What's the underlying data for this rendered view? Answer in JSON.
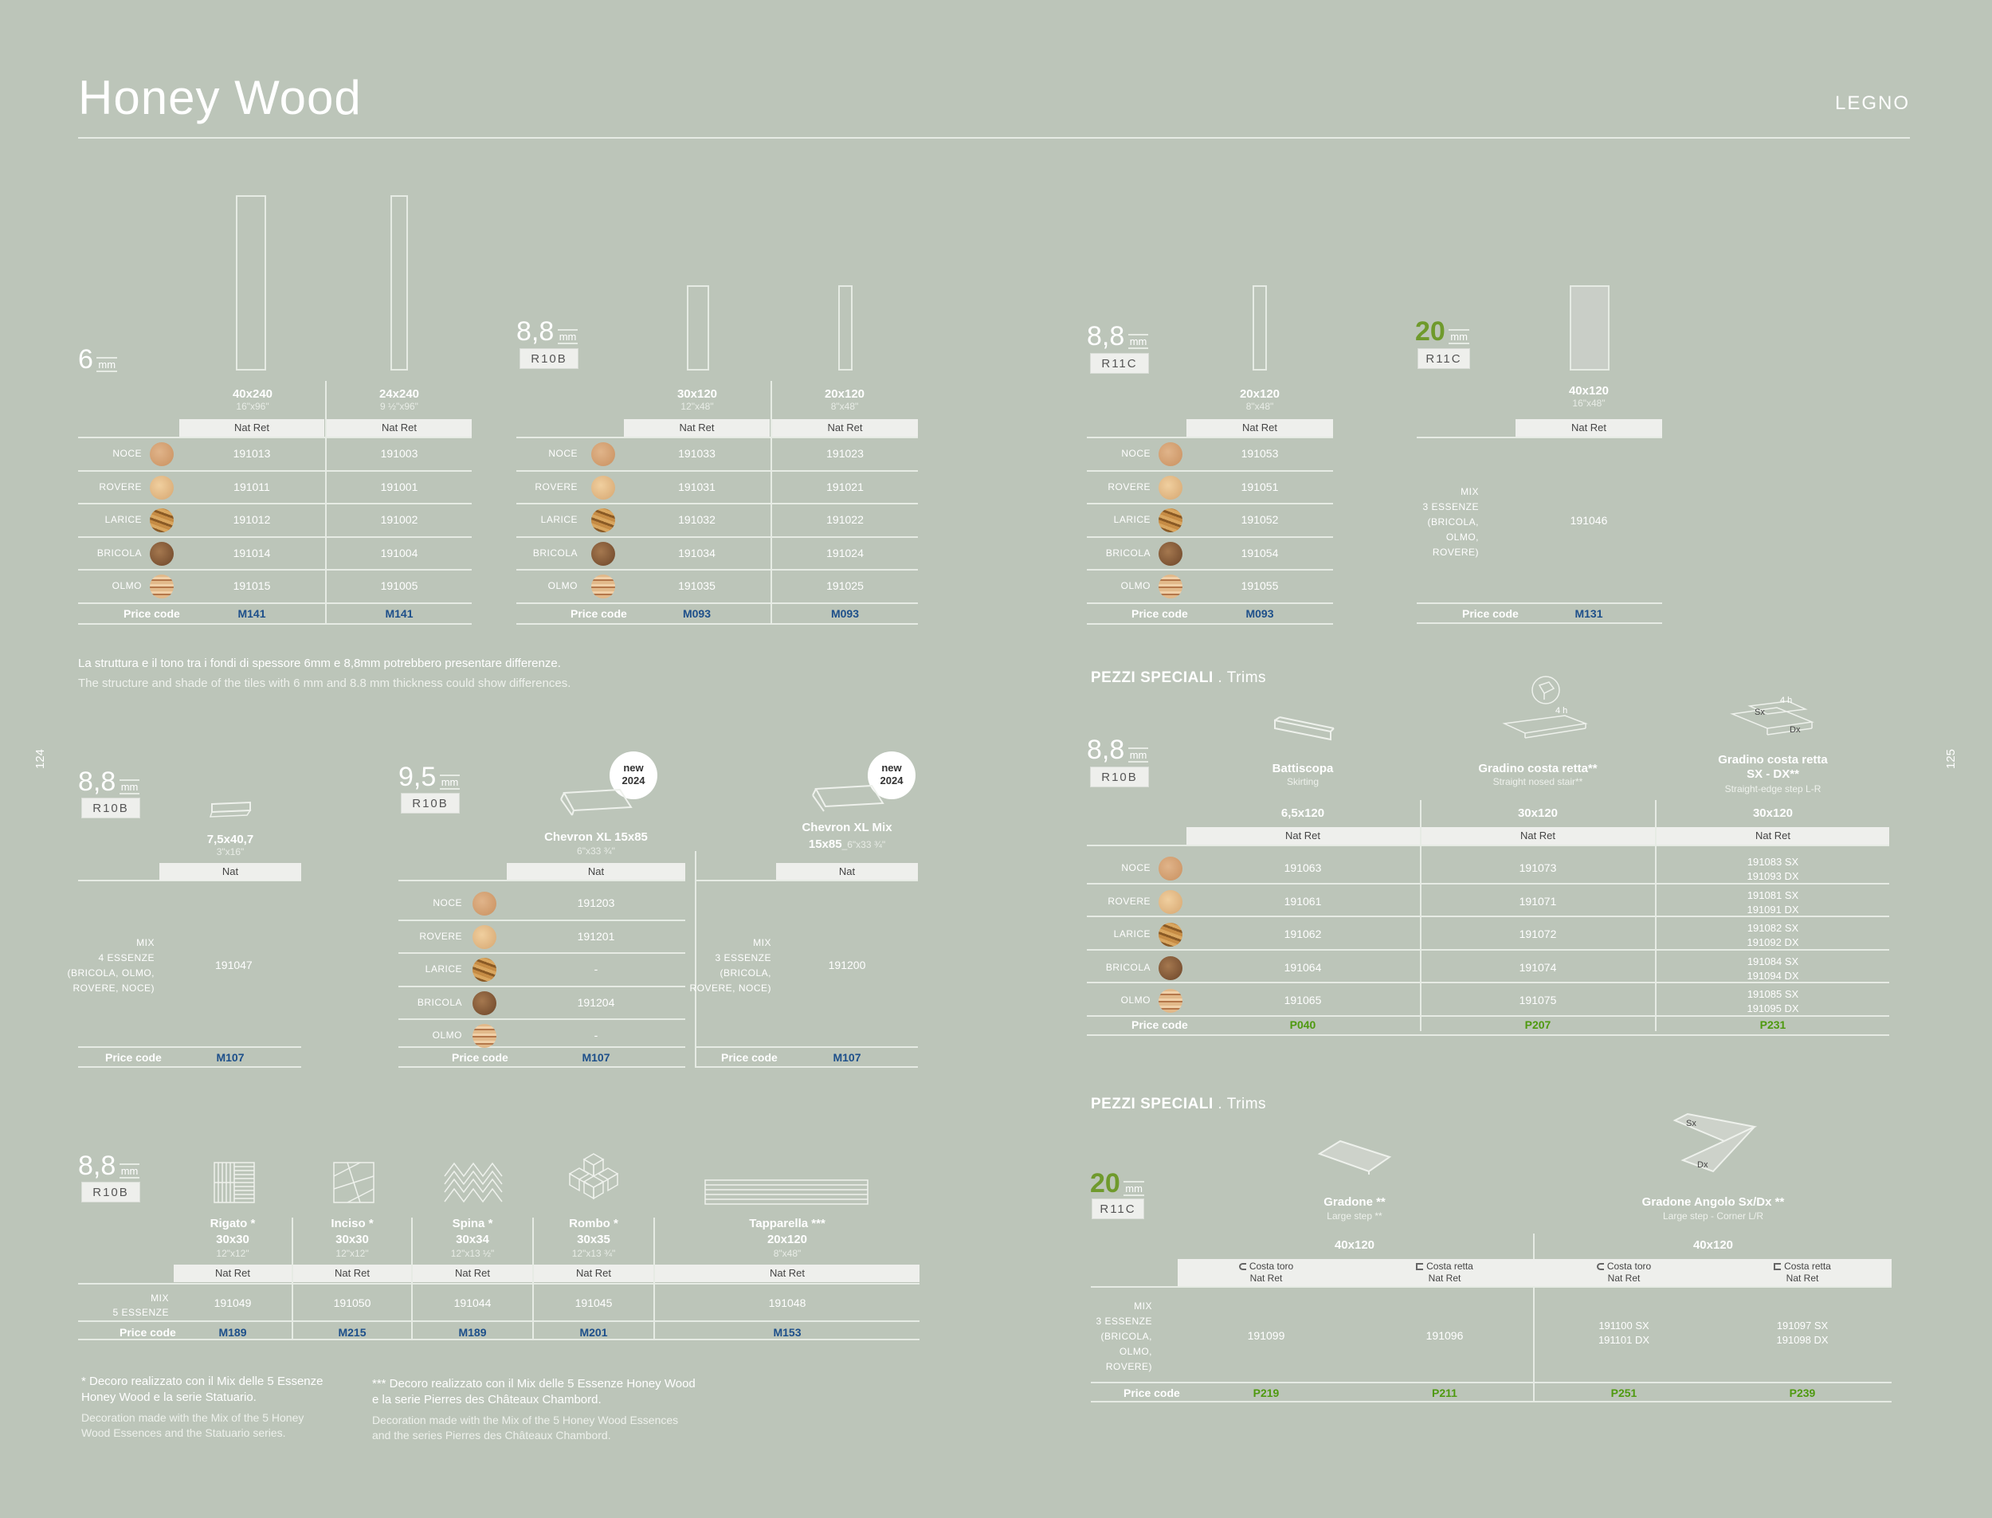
{
  "header": {
    "title": "Honey Wood",
    "category": "LEGNO",
    "page_left": "124",
    "page_right": "125"
  },
  "essences": [
    "NOCE",
    "ROVERE",
    "LARICE",
    "BRICOLA",
    "OLMO"
  ],
  "price_code_label": "Price code",
  "mm": "mm",
  "blockA": {
    "thickness": "6",
    "sizes": [
      {
        "cm": "40x240",
        "inch": "16\"x96\"",
        "finish": "Nat Ret",
        "codes": [
          "191013",
          "191011",
          "191012",
          "191014",
          "191015"
        ],
        "price": "M141"
      },
      {
        "cm": "24x240",
        "inch": "9 ½\"x96\"",
        "finish": "Nat Ret",
        "codes": [
          "191003",
          "191001",
          "191002",
          "191004",
          "191005"
        ],
        "price": "M141"
      }
    ]
  },
  "blockB": {
    "thickness": "8,8",
    "slip": "R10B",
    "sizes": [
      {
        "cm": "30x120",
        "inch": "12\"x48\"",
        "finish": "Nat Ret",
        "codes": [
          "191033",
          "191031",
          "191032",
          "191034",
          "191035"
        ],
        "price": "M093"
      },
      {
        "cm": "20x120",
        "inch": "8\"x48\"",
        "finish": "Nat Ret",
        "codes": [
          "191023",
          "191021",
          "191022",
          "191024",
          "191025"
        ],
        "price": "M093"
      }
    ]
  },
  "blockC": {
    "thickness": "8,8",
    "slip": "R11C",
    "size": {
      "cm": "20x120",
      "inch": "8\"x48\"",
      "finish": "Nat Ret",
      "codes": [
        "191053",
        "191051",
        "191052",
        "191054",
        "191055"
      ],
      "price": "M093"
    }
  },
  "blockD": {
    "thickness": "20",
    "slip": "R11C",
    "size": {
      "cm": "40x120",
      "inch": "16\"x48\"",
      "finish": "Nat Ret",
      "mix": [
        "MIX",
        "3 ESSENZE",
        "(BRICOLA,",
        "OLMO,",
        "ROVERE)"
      ],
      "code": "191046",
      "price": "M131"
    }
  },
  "notes": {
    "it": "La struttura e il tono tra i fondi di spessore 6mm e 8,8mm potrebbero presentare differenze.",
    "en": "The structure and shade of the tiles with 6 mm and 8.8 mm thickness could show differences."
  },
  "blockE": {
    "thickness": "8,8",
    "slip": "R10B",
    "size": {
      "cm": "7,5x40,7",
      "inch": "3\"x16\"",
      "finish": "Nat",
      "mix": [
        "MIX",
        "4 ESSENZE",
        "(BRICOLA, OLMO,",
        "ROVERE, NOCE)"
      ],
      "code": "191047",
      "price": "M107"
    }
  },
  "blockF": {
    "thickness": "9,5",
    "slip": "R10B",
    "badge1": [
      "new",
      "2024"
    ],
    "badge2": [
      "new",
      "2024"
    ],
    "chevron": {
      "name": "Chevron XL 15x85",
      "inch": "6\"x33 ¾\"",
      "finish": "Nat",
      "codes": [
        "191203",
        "191201",
        "-",
        "191204",
        "-"
      ],
      "price": "M107"
    },
    "chevron_mix": {
      "name": "Chevron XL Mix",
      "name2": "15x85",
      "inch": "_6\"x33 ¾\"",
      "finish": "Nat",
      "mix": [
        "MIX",
        "3 ESSENZE",
        "(BRICOLA,",
        "ROVERE, NOCE)"
      ],
      "code": "191200",
      "price": "M107"
    }
  },
  "blockG": {
    "thickness": "8,8",
    "slip": "R10B",
    "mix": [
      "MIX",
      "5 ESSENZE"
    ],
    "items": [
      {
        "name": "Rigato *",
        "cm": "30x30",
        "inch": "12\"x12\"",
        "finish": "Nat Ret",
        "code": "191049",
        "price": "M189"
      },
      {
        "name": "Inciso *",
        "cm": "30x30",
        "inch": "12\"x12\"",
        "finish": "Nat Ret",
        "code": "191050",
        "price": "M215"
      },
      {
        "name": "Spina *",
        "cm": "30x34",
        "inch": "12\"x13 ½\"",
        "finish": "Nat Ret",
        "code": "191044",
        "price": "M189"
      },
      {
        "name": "Rombo *",
        "cm": "30x35",
        "inch": "12\"x13 ¾\"",
        "finish": "Nat Ret",
        "code": "191045",
        "price": "M201"
      },
      {
        "name": "Tapparella ***",
        "cm": "20x120",
        "inch": "8\"x48\"",
        "finish": "Nat Ret",
        "code": "191048",
        "price": "M153"
      }
    ]
  },
  "footnotes": {
    "a_it": [
      "* Decoro realizzato con il Mix delle 5 Essenze",
      "Honey Wood e la serie Statuario."
    ],
    "a_en": [
      "Decoration made with the Mix of the 5 Honey",
      "Wood Essences and  the Statuario series."
    ],
    "b_it": [
      "*** Decoro realizzato con il Mix delle 5 Essenze Honey Wood",
      "e la serie Pierres des Châteaux Chambord."
    ],
    "b_en": [
      "Decoration made with the Mix of the 5 Honey Wood Essences",
      "and the series Pierres des Châteaux Chambord."
    ]
  },
  "trims1": {
    "section": "PEZZI SPECIALI",
    "section_en": ". Trims",
    "thickness": "8,8",
    "slip": "R10B",
    "labels": {
      "h4a": "4 h",
      "h4b": "4 h",
      "sx": "Sx",
      "dx": "Dx"
    },
    "pieces": [
      {
        "name": "Battiscopa",
        "name2": "",
        "en": "Skirting",
        "size": "6,5x120",
        "finish": "Nat Ret",
        "codes": [
          "191063",
          "191061",
          "191062",
          "191064",
          "191065"
        ],
        "price": "P040"
      },
      {
        "name": "Gradino costa retta**",
        "name2": "",
        "en": "Straight nosed stair**",
        "size": "30x120",
        "finish": "Nat Ret",
        "codes": [
          "191073",
          "191071",
          "191072",
          "191074",
          "191075"
        ],
        "price": "P207"
      },
      {
        "name": "Gradino costa retta",
        "name2": "SX - DX**",
        "en": "Straight-edge step L-R",
        "size": "30x120",
        "finish": "Nat Ret",
        "codes": [
          [
            "191083 SX",
            "191093 DX"
          ],
          [
            "191081 SX",
            "191091 DX"
          ],
          [
            "191082 SX",
            "191092 DX"
          ],
          [
            "191084 SX",
            "191094 DX"
          ],
          [
            "191085 SX",
            "191095 DX"
          ]
        ],
        "price": "P231"
      }
    ]
  },
  "trims2": {
    "section": "PEZZI SPECIALI",
    "section_en": ". Trims",
    "thickness": "20",
    "slip": "R11C",
    "labels": {
      "sx": "Sx",
      "dx": "Dx"
    },
    "mix": [
      "MIX",
      "3 ESSENZE",
      "(BRICOLA,",
      "OLMO,",
      "ROVERE)"
    ],
    "groups": [
      {
        "name": "Gradone **",
        "en": "Large step **",
        "size": "40x120"
      },
      {
        "name": "Gradone  Angolo Sx/Dx **",
        "en": "Large step - Corner L/R",
        "size": "40x120"
      }
    ],
    "cols": [
      {
        "edge": "Costa toro",
        "finish": "Nat Ret",
        "code": [
          "191099"
        ],
        "price": "P219"
      },
      {
        "edge": "Costa retta",
        "finish": "Nat Ret",
        "code": [
          "191096"
        ],
        "price": "P211"
      },
      {
        "edge": "Costa toro",
        "finish": "Nat Ret",
        "code": [
          "191100 SX",
          "191101 DX"
        ],
        "price": "P251"
      },
      {
        "edge": "Costa retta",
        "finish": "Nat Ret",
        "code": [
          "191097 SX",
          "191098 DX"
        ],
        "price": "P239"
      }
    ]
  },
  "colors": {
    "background": "#bcc5b9",
    "price_blue": "#1d4f8a",
    "price_green": "#4f9a10",
    "accent_green": "#6f9a2c"
  }
}
